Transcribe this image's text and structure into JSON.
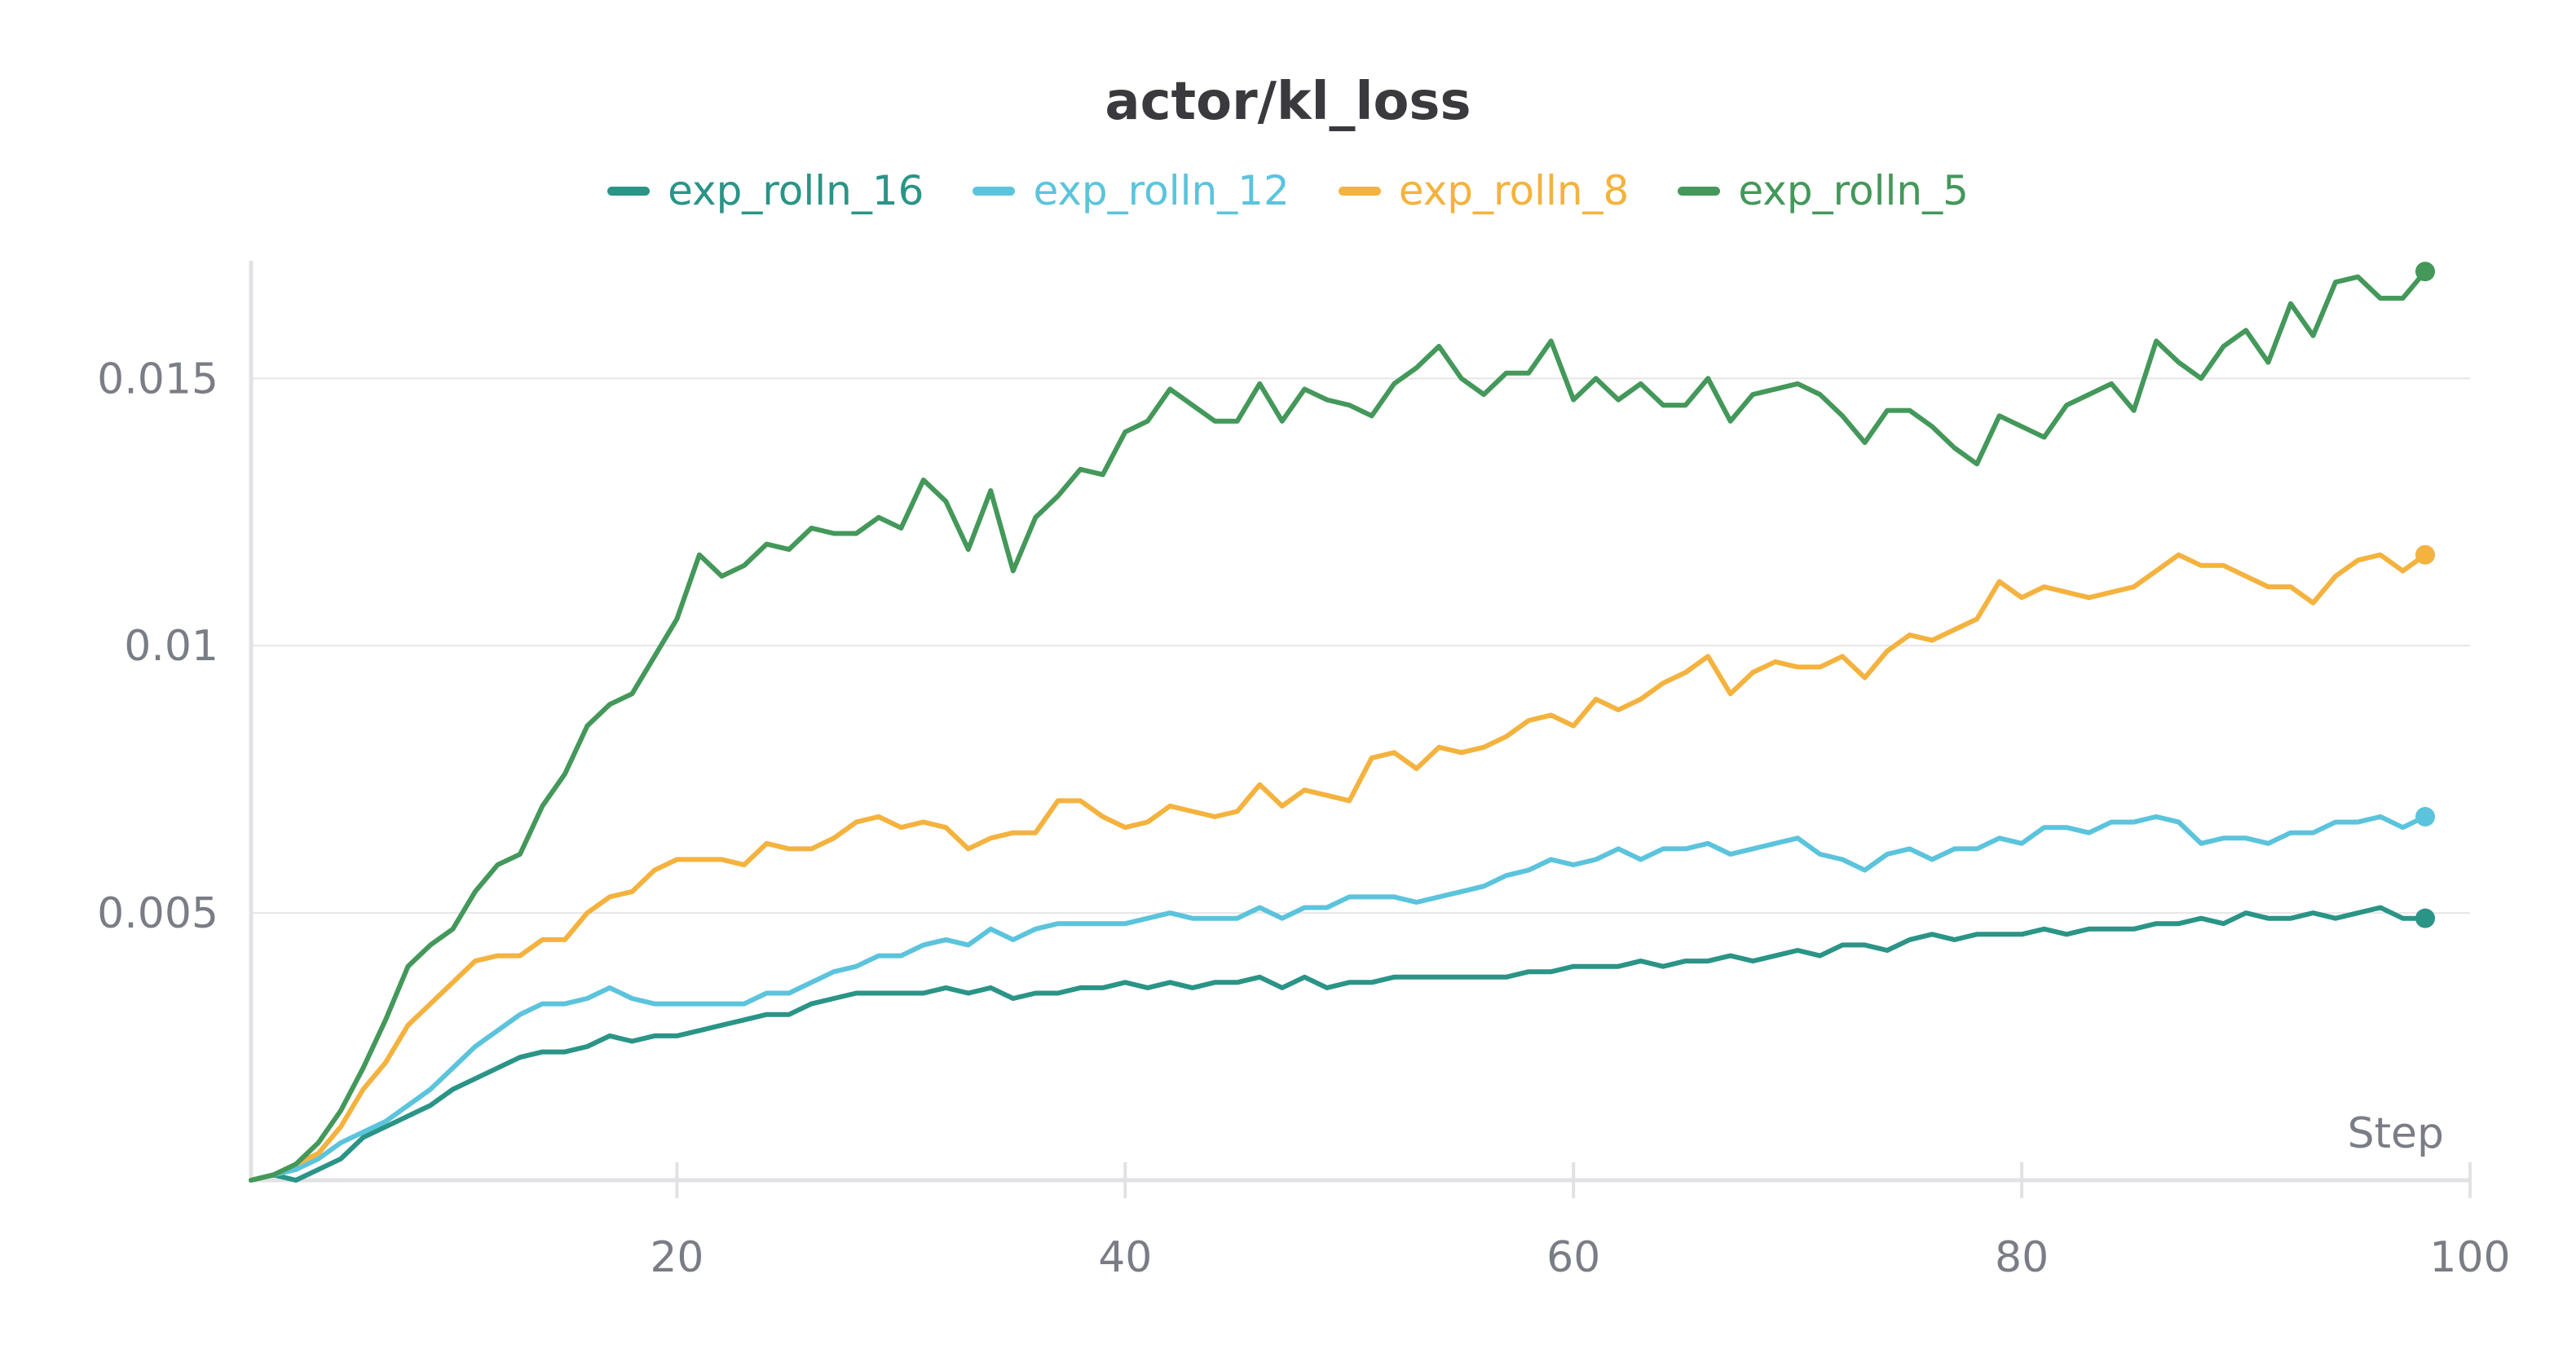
{
  "chart_data": {
    "type": "line",
    "title": "actor/kl_loss",
    "xlabel": "Step",
    "ylabel": "",
    "xlim": [
      1,
      100
    ],
    "ylim": [
      0,
      0.0172
    ],
    "xticks": [
      20,
      40,
      60,
      80,
      100
    ],
    "xtick_labels": [
      "20",
      "40",
      "60",
      "80",
      "100"
    ],
    "yticks": [
      0.005,
      0.01,
      0.015
    ],
    "ytick_labels": [
      "0.005",
      "0.01",
      "0.015"
    ],
    "grid": true,
    "legend_position": "top-center",
    "x": [
      1,
      2,
      3,
      4,
      5,
      6,
      7,
      8,
      9,
      10,
      11,
      12,
      13,
      14,
      15,
      16,
      17,
      18,
      19,
      20,
      21,
      22,
      23,
      24,
      25,
      26,
      27,
      28,
      29,
      30,
      31,
      32,
      33,
      34,
      35,
      36,
      37,
      38,
      39,
      40,
      41,
      42,
      43,
      44,
      45,
      46,
      47,
      48,
      49,
      50,
      51,
      52,
      53,
      54,
      55,
      56,
      57,
      58,
      59,
      60,
      61,
      62,
      63,
      64,
      65,
      66,
      67,
      68,
      69,
      70,
      71,
      72,
      73,
      74,
      75,
      76,
      77,
      78,
      79,
      80,
      81,
      82,
      83,
      84,
      85,
      86,
      87,
      88,
      89,
      90,
      91,
      92,
      93,
      94,
      95,
      96,
      97,
      98
    ],
    "series": [
      {
        "name": "exp_rolln_16",
        "color": "#2a9487",
        "values": [
          0.0,
          0.0001,
          0.0,
          0.0002,
          0.0004,
          0.0008,
          0.001,
          0.0012,
          0.0014,
          0.0017,
          0.0019,
          0.0021,
          0.0023,
          0.0024,
          0.0024,
          0.0025,
          0.0027,
          0.0026,
          0.0027,
          0.0027,
          0.0028,
          0.0029,
          0.003,
          0.0031,
          0.0031,
          0.0033,
          0.0034,
          0.0035,
          0.0035,
          0.0035,
          0.0035,
          0.0036,
          0.0035,
          0.0036,
          0.0034,
          0.0035,
          0.0035,
          0.0036,
          0.0036,
          0.0037,
          0.0036,
          0.0037,
          0.0036,
          0.0037,
          0.0037,
          0.0038,
          0.0036,
          0.0038,
          0.0036,
          0.0037,
          0.0037,
          0.0038,
          0.0038,
          0.0038,
          0.0038,
          0.0038,
          0.0038,
          0.0039,
          0.0039,
          0.004,
          0.004,
          0.004,
          0.0041,
          0.004,
          0.0041,
          0.0041,
          0.0042,
          0.0041,
          0.0042,
          0.0043,
          0.0042,
          0.0044,
          0.0044,
          0.0043,
          0.0045,
          0.0046,
          0.0045,
          0.0046,
          0.0046,
          0.0046,
          0.0047,
          0.0046,
          0.0047,
          0.0047,
          0.0047,
          0.0048,
          0.0048,
          0.0049,
          0.0048,
          0.005,
          0.0049,
          0.0049,
          0.005,
          0.0049,
          0.005,
          0.0051,
          0.0049,
          0.0049
        ]
      },
      {
        "name": "exp_rolln_12",
        "color": "#5bc4dc",
        "values": [
          0.0,
          0.0001,
          0.0002,
          0.0004,
          0.0007,
          0.0009,
          0.0011,
          0.0014,
          0.0017,
          0.0021,
          0.0025,
          0.0028,
          0.0031,
          0.0033,
          0.0033,
          0.0034,
          0.0036,
          0.0034,
          0.0033,
          0.0033,
          0.0033,
          0.0033,
          0.0033,
          0.0035,
          0.0035,
          0.0037,
          0.0039,
          0.004,
          0.0042,
          0.0042,
          0.0044,
          0.0045,
          0.0044,
          0.0047,
          0.0045,
          0.0047,
          0.0048,
          0.0048,
          0.0048,
          0.0048,
          0.0049,
          0.005,
          0.0049,
          0.0049,
          0.0049,
          0.0051,
          0.0049,
          0.0051,
          0.0051,
          0.0053,
          0.0053,
          0.0053,
          0.0052,
          0.0053,
          0.0054,
          0.0055,
          0.0057,
          0.0058,
          0.006,
          0.0059,
          0.006,
          0.0062,
          0.006,
          0.0062,
          0.0062,
          0.0063,
          0.0061,
          0.0062,
          0.0063,
          0.0064,
          0.0061,
          0.006,
          0.0058,
          0.0061,
          0.0062,
          0.006,
          0.0062,
          0.0062,
          0.0064,
          0.0063,
          0.0066,
          0.0066,
          0.0065,
          0.0067,
          0.0067,
          0.0068,
          0.0067,
          0.0063,
          0.0064,
          0.0064,
          0.0063,
          0.0065,
          0.0065,
          0.0067,
          0.0067,
          0.0068,
          0.0066,
          0.0068
        ]
      },
      {
        "name": "exp_rolln_8",
        "color": "#f4b23e",
        "values": [
          0.0,
          0.0001,
          0.0003,
          0.0005,
          0.001,
          0.0017,
          0.0022,
          0.0029,
          0.0033,
          0.0037,
          0.0041,
          0.0042,
          0.0042,
          0.0045,
          0.0045,
          0.005,
          0.0053,
          0.0054,
          0.0058,
          0.006,
          0.006,
          0.006,
          0.0059,
          0.0063,
          0.0062,
          0.0062,
          0.0064,
          0.0067,
          0.0068,
          0.0066,
          0.0067,
          0.0066,
          0.0062,
          0.0064,
          0.0065,
          0.0065,
          0.0071,
          0.0071,
          0.0068,
          0.0066,
          0.0067,
          0.007,
          0.0069,
          0.0068,
          0.0069,
          0.0074,
          0.007,
          0.0073,
          0.0072,
          0.0071,
          0.0079,
          0.008,
          0.0077,
          0.0081,
          0.008,
          0.0081,
          0.0083,
          0.0086,
          0.0087,
          0.0085,
          0.009,
          0.0088,
          0.009,
          0.0093,
          0.0095,
          0.0098,
          0.0091,
          0.0095,
          0.0097,
          0.0096,
          0.0096,
          0.0098,
          0.0094,
          0.0099,
          0.0102,
          0.0101,
          0.0103,
          0.0105,
          0.0112,
          0.0109,
          0.0111,
          0.011,
          0.0109,
          0.011,
          0.0111,
          0.0114,
          0.0117,
          0.0115,
          0.0115,
          0.0113,
          0.0111,
          0.0111,
          0.0108,
          0.0113,
          0.0116,
          0.0117,
          0.0114,
          0.0117
        ]
      },
      {
        "name": "exp_rolln_5",
        "color": "#43985a",
        "values": [
          0.0,
          0.0001,
          0.0003,
          0.0007,
          0.0013,
          0.0021,
          0.003,
          0.004,
          0.0044,
          0.0047,
          0.0054,
          0.0059,
          0.0061,
          0.007,
          0.0076,
          0.0085,
          0.0089,
          0.0091,
          0.0098,
          0.0105,
          0.0117,
          0.0113,
          0.0115,
          0.0119,
          0.0118,
          0.0122,
          0.0121,
          0.0121,
          0.0124,
          0.0122,
          0.0131,
          0.0127,
          0.0118,
          0.0129,
          0.0114,
          0.0124,
          0.0128,
          0.0133,
          0.0132,
          0.014,
          0.0142,
          0.0148,
          0.0145,
          0.0142,
          0.0142,
          0.0149,
          0.0142,
          0.0148,
          0.0146,
          0.0145,
          0.0143,
          0.0149,
          0.0152,
          0.0156,
          0.015,
          0.0147,
          0.0151,
          0.0151,
          0.0157,
          0.0146,
          0.015,
          0.0146,
          0.0149,
          0.0145,
          0.0145,
          0.015,
          0.0142,
          0.0147,
          0.0148,
          0.0149,
          0.0147,
          0.0143,
          0.0138,
          0.0144,
          0.0144,
          0.0141,
          0.0137,
          0.0134,
          0.0143,
          0.0141,
          0.0139,
          0.0145,
          0.0147,
          0.0149,
          0.0144,
          0.0157,
          0.0153,
          0.015,
          0.0156,
          0.0159,
          0.0153,
          0.0164,
          0.0158,
          0.0168,
          0.0169,
          0.0165,
          0.0165,
          0.017
        ]
      }
    ]
  }
}
